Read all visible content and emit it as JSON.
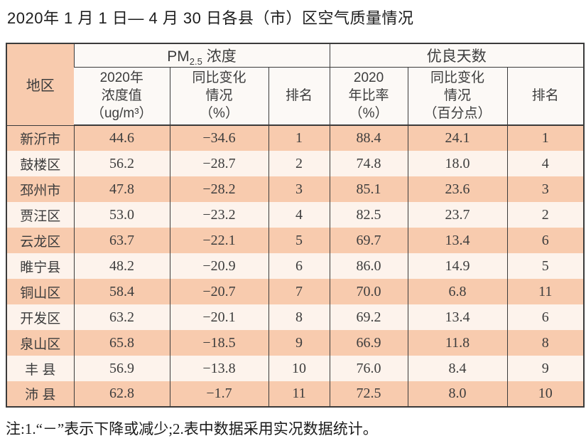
{
  "page": {
    "title": "2020年 1 月 1 日— 4 月 30 日各县（市）区空气质量情况",
    "footnote": "注:1.“－”表示下降或减少;2.表中数据采用实况数据统计。"
  },
  "colors": {
    "row_peach": "#f8cbae",
    "row_light": "#fdf3ec",
    "border": "#3b3b3b",
    "header_bg": "#fcf9f6",
    "text": "#3d3d3d",
    "title_text": "#1d1d1d"
  },
  "table": {
    "header": {
      "region": "地区",
      "pm_group": {
        "prefix": "PM",
        "sub": "2.5",
        "suffix": " 浓度"
      },
      "good_days_group": "优良天数",
      "subs": [
        {
          "name": "pm-2020-concentration",
          "lines": [
            "2020年",
            "浓度值",
            "（ug/m³）"
          ]
        },
        {
          "name": "pm-yoy-change",
          "lines": [
            "同比变化",
            "情况",
            "（%）"
          ]
        },
        {
          "name": "pm-rank",
          "lines": [
            "排名"
          ]
        },
        {
          "name": "good-days-2020-ratio",
          "lines": [
            "2020",
            "年比率",
            "（%）"
          ]
        },
        {
          "name": "good-days-yoy-change",
          "lines": [
            "同比变化",
            "情况",
            "（百分点）"
          ]
        },
        {
          "name": "good-days-rank",
          "lines": [
            "排名"
          ]
        }
      ]
    },
    "rows": [
      {
        "region": "新沂市",
        "values": [
          "44.6",
          "−34.6",
          "1",
          "88.4",
          "24.1",
          "1"
        ]
      },
      {
        "region": "鼓楼区",
        "values": [
          "56.2",
          "−28.7",
          "2",
          "74.8",
          "18.0",
          "4"
        ]
      },
      {
        "region": "邳州市",
        "values": [
          "47.8",
          "−28.2",
          "3",
          "85.1",
          "23.6",
          "3"
        ]
      },
      {
        "region": "贾汪区",
        "values": [
          "53.0",
          "−23.2",
          "4",
          "82.5",
          "23.7",
          "2"
        ]
      },
      {
        "region": "云龙区",
        "values": [
          "63.7",
          "−22.1",
          "5",
          "69.7",
          "13.4",
          "6"
        ]
      },
      {
        "region": "睢宁县",
        "values": [
          "48.2",
          "−20.9",
          "6",
          "86.0",
          "14.9",
          "5"
        ]
      },
      {
        "region": "铜山区",
        "values": [
          "58.4",
          "−20.7",
          "7",
          "70.0",
          "6.8",
          "11"
        ]
      },
      {
        "region": "开发区",
        "values": [
          "63.2",
          "−20.1",
          "8",
          "69.2",
          "13.4",
          "6"
        ]
      },
      {
        "region": "泉山区",
        "values": [
          "65.8",
          "−18.5",
          "9",
          "66.9",
          "11.8",
          "8"
        ]
      },
      {
        "region": "丰 县",
        "values": [
          "56.9",
          "−13.8",
          "10",
          "76.0",
          "8.4",
          "9"
        ]
      },
      {
        "region": "沛 县",
        "values": [
          "62.8",
          "−1.7",
          "11",
          "72.5",
          "8.0",
          "10"
        ]
      }
    ]
  }
}
